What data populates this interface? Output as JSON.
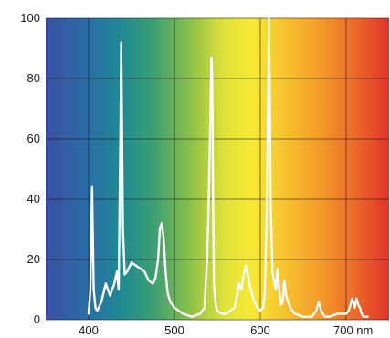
{
  "chart_data": {
    "type": "line",
    "title": "",
    "xlabel": "",
    "ylabel": "",
    "x_unit": "nm",
    "xlim": [
      350,
      750
    ],
    "ylim": [
      0,
      100
    ],
    "x_ticks": [
      400,
      500,
      600,
      700
    ],
    "x_tick_labels": [
      "400",
      "500",
      "600",
      "700 nm"
    ],
    "y_ticks": [
      0,
      20,
      40,
      60,
      80,
      100
    ],
    "y_tick_labels": [
      "0",
      "20",
      "40",
      "60",
      "80",
      "100"
    ],
    "grid": true,
    "background": "visible spectrum gradient (violet to red)",
    "line_color": "#ffffff",
    "series": [
      {
        "x": [
          400,
          402,
          404,
          406,
          408,
          410,
          415,
          420,
          425,
          430,
          433,
          435,
          437,
          438,
          440,
          442,
          445,
          450,
          455,
          460,
          465,
          470,
          475,
          478,
          481,
          483,
          485,
          487,
          490,
          492,
          495,
          500,
          510,
          520,
          530,
          535,
          538,
          540,
          542,
          543,
          544,
          545,
          546,
          548,
          550,
          555,
          560,
          565,
          570,
          573,
          575,
          578,
          580,
          583,
          585,
          587,
          590,
          593,
          597,
          600,
          603,
          605,
          607,
          609,
          610,
          611,
          612,
          614,
          616,
          618,
          620,
          622,
          624,
          626,
          628,
          630,
          635,
          640,
          650,
          660,
          665,
          668,
          671,
          675,
          680,
          690,
          700,
          703,
          707,
          710,
          712,
          714,
          716,
          718,
          720,
          725
        ],
        "y": [
          2,
          10,
          44,
          10,
          4,
          3,
          6,
          12,
          8,
          12,
          16,
          10,
          60,
          92,
          30,
          15,
          16,
          19,
          18,
          17,
          16,
          13,
          12,
          14,
          20,
          30,
          32,
          28,
          15,
          9,
          6,
          4,
          2,
          1,
          2,
          4,
          20,
          40,
          70,
          87,
          80,
          40,
          12,
          5,
          3,
          2,
          2,
          3,
          4,
          8,
          12,
          10,
          14,
          18,
          16,
          12,
          9,
          6,
          4,
          3,
          4,
          8,
          30,
          70,
          100,
          75,
          40,
          16,
          13,
          10,
          17,
          10,
          5,
          6,
          13,
          8,
          4,
          2,
          1,
          1,
          3,
          6,
          3,
          1,
          1,
          2,
          2,
          3,
          7,
          4,
          7,
          5,
          4,
          2,
          1,
          1
        ]
      }
    ]
  }
}
